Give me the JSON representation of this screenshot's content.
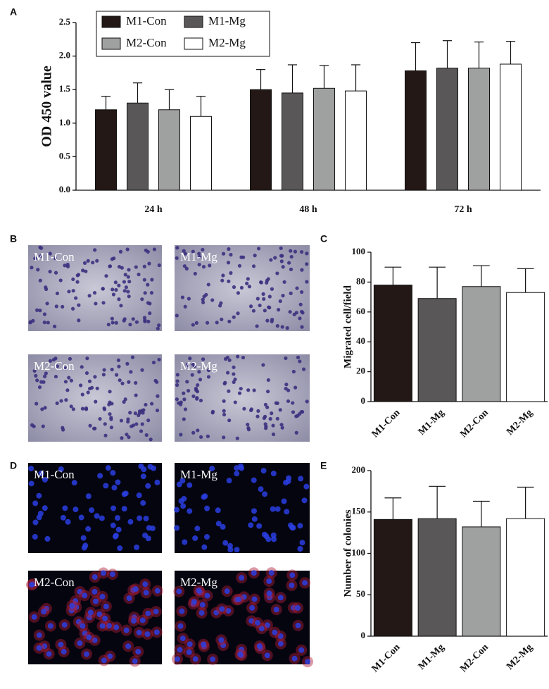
{
  "chart_data": [
    {
      "type": "bar",
      "panel": "A",
      "ylabel": "OD 450 value",
      "categories": [
        "24 h",
        "48 h",
        "72 h"
      ],
      "series": [
        {
          "name": "M1-Con",
          "color": "#231815",
          "values": [
            1.2,
            1.5,
            1.78
          ],
          "errors": [
            0.2,
            0.3,
            0.42
          ]
        },
        {
          "name": "M1-Mg",
          "color": "#595757",
          "values": [
            1.3,
            1.45,
            1.82
          ],
          "errors": [
            0.3,
            0.42,
            0.41
          ]
        },
        {
          "name": "M2-Con",
          "color": "#9fa0a0",
          "values": [
            1.2,
            1.52,
            1.82
          ],
          "errors": [
            0.3,
            0.34,
            0.39
          ]
        },
        {
          "name": "M2-Mg",
          "color": "#ffffff",
          "values": [
            1.1,
            1.48,
            1.88
          ],
          "errors": [
            0.3,
            0.39,
            0.34
          ]
        }
      ],
      "ylim": [
        0,
        2.5
      ],
      "yticks": [
        {
          "value": 0,
          "label": "0.0"
        },
        {
          "value": 0.5,
          "label": "0.5"
        },
        {
          "value": 1,
          "label": "1.0"
        },
        {
          "value": 1.5,
          "label": "1.5"
        },
        {
          "value": 2,
          "label": "2.0"
        },
        {
          "value": 2.5,
          "label": "2.5"
        }
      ],
      "legend": "top-left"
    },
    {
      "type": "bar",
      "panel": "C",
      "ylabel": "Migrated cell/field",
      "categories": [
        "M1-Con",
        "M1-Mg",
        "M2-Con",
        "M2-Mg"
      ],
      "values": [
        78,
        69,
        77,
        73
      ],
      "errors": [
        12,
        21,
        14,
        16
      ],
      "colors": [
        "#231815",
        "#595757",
        "#9fa0a0",
        "#ffffff"
      ],
      "ylim": [
        0,
        100
      ],
      "yticks": [
        0,
        20,
        40,
        60,
        80,
        100
      ]
    },
    {
      "type": "bar",
      "panel": "E",
      "ylabel": "Number of colonies",
      "categories": [
        "M1-Con",
        "M1-Mg",
        "M2-Con",
        "M2-Mg"
      ],
      "values": [
        141,
        142,
        132,
        142
      ],
      "errors": [
        26,
        39,
        31,
        38
      ],
      "colors": [
        "#231815",
        "#595757",
        "#9fa0a0",
        "#ffffff"
      ],
      "ylim": [
        0,
        200
      ],
      "yticks": [
        0,
        50,
        100,
        150,
        200
      ]
    }
  ],
  "micrographs": [
    {
      "panel": "B",
      "images": [
        "M1-Con",
        "M1-Mg",
        "M2-Con",
        "M2-Mg"
      ]
    },
    {
      "panel": "D",
      "images": [
        "M1-Con",
        "M1-Mg",
        "M2-Con",
        "M2-Mg"
      ]
    }
  ]
}
